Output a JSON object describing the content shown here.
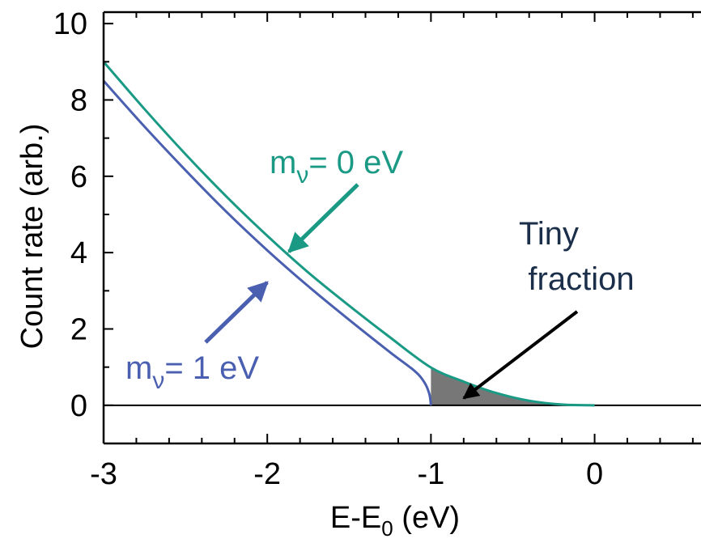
{
  "chart_data": {
    "type": "line",
    "xlabel": {
      "main": "E-E",
      "sub": "0",
      "unit": " (eV)"
    },
    "ylabel": "Count rate (arb.)",
    "xlim": [
      -3,
      0.65
    ],
    "ylim": [
      -1,
      10.3
    ],
    "xticks": [
      -3,
      -2,
      -1,
      0
    ],
    "xtick_labels": [
      "-3",
      "-2",
      "-1",
      "0"
    ],
    "yticks": [
      0,
      2,
      4,
      6,
      8,
      10
    ],
    "ytick_labels": [
      "0",
      "2",
      "4",
      "6",
      "8",
      "10"
    ],
    "grid": false,
    "series": [
      {
        "name": "m_v = 0 eV",
        "color": "#1a9a84",
        "x": [
          -3.0,
          -2.75,
          -2.5,
          -2.25,
          -2.0,
          -1.75,
          -1.5,
          -1.25,
          -1.0,
          -0.8,
          -0.6,
          -0.4,
          -0.2,
          0.0
        ],
        "y": [
          9.0,
          7.76,
          6.58,
          5.47,
          4.44,
          3.48,
          2.61,
          1.78,
          0.99,
          0.62,
          0.32,
          0.12,
          0.02,
          0.0
        ]
      },
      {
        "name": "m_v = 1 eV",
        "color": "#4a5fb0",
        "x": [
          -3.0,
          -2.75,
          -2.5,
          -2.25,
          -2.0,
          -1.75,
          -1.5,
          -1.25,
          -1.1,
          -1.04,
          -1.01,
          -1.0
        ],
        "y": [
          8.5,
          7.3,
          6.16,
          5.07,
          4.06,
          3.12,
          2.24,
          1.39,
          0.9,
          0.6,
          0.3,
          0.0
        ]
      }
    ],
    "shaded_region": {
      "x_from": -1.0,
      "x_to": 0.0,
      "color": "#777777"
    },
    "annotations": [
      {
        "id": "m0",
        "prefix": "m",
        "sub": "ν",
        "suffix": "= 0 eV",
        "color": "#1a9a84"
      },
      {
        "id": "m1",
        "prefix": "m",
        "sub": "ν",
        "suffix": "= 1 eV",
        "color": "#4a5fb0"
      },
      {
        "id": "tiny",
        "lines": [
          "Tiny",
          "fraction"
        ],
        "color": "#1b2f4a"
      }
    ],
    "zero_line": true
  }
}
